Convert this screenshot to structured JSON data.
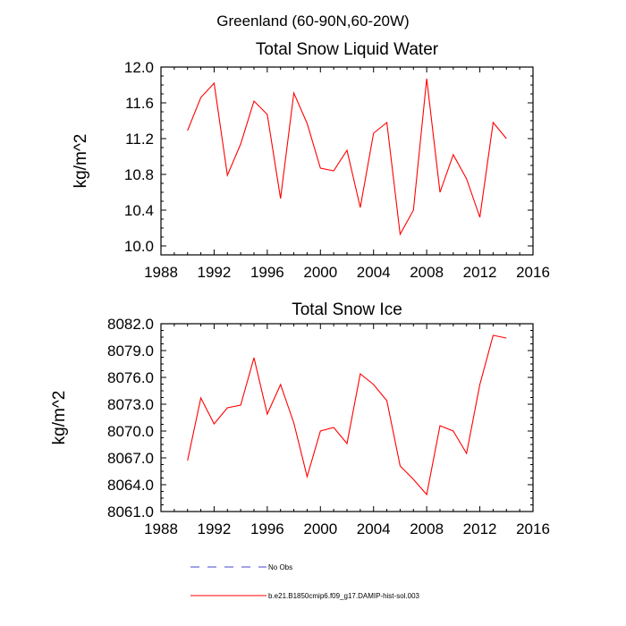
{
  "page_title": "Greenland (60-90N,60-20W)",
  "chart_data": [
    {
      "type": "line",
      "title": "Total Snow Liquid Water",
      "xlabel": "",
      "ylabel": "kg/m^2",
      "xlim": [
        1988,
        2016
      ],
      "ylim": [
        9.9,
        12.0
      ],
      "xticks": [
        "1988",
        "1992",
        "1996",
        "2000",
        "2004",
        "2008",
        "2012",
        "2016"
      ],
      "yticks": [
        "10.0",
        "10.4",
        "10.8",
        "11.2",
        "11.6",
        "12.0"
      ],
      "series": [
        {
          "name": "b.e21.B1850cmip6.f09_g17.DAMIP-hist-sol.003",
          "color": "#ff0000",
          "x": [
            1990,
            1991,
            1992,
            1993,
            1994,
            1995,
            1996,
            1997,
            1998,
            1999,
            2000,
            2001,
            2002,
            2003,
            2004,
            2005,
            2006,
            2007,
            2008,
            2009,
            2010,
            2011,
            2012,
            2013,
            2014
          ],
          "values": [
            11.29,
            11.66,
            11.82,
            10.79,
            11.14,
            11.62,
            11.47,
            10.53,
            11.71,
            11.37,
            10.87,
            10.84,
            11.07,
            10.43,
            11.26,
            11.38,
            10.13,
            10.4,
            11.87,
            10.6,
            11.02,
            10.75,
            10.32,
            11.38,
            11.2
          ]
        }
      ]
    },
    {
      "type": "line",
      "title": "Total Snow Ice",
      "xlabel": "",
      "ylabel": "kg/m^2",
      "xlim": [
        1988,
        2016
      ],
      "ylim": [
        8061.0,
        8082.0
      ],
      "xticks": [
        "1988",
        "1992",
        "1996",
        "2000",
        "2004",
        "2008",
        "2012",
        "2016"
      ],
      "yticks": [
        "8061.0",
        "8064.0",
        "8067.0",
        "8070.0",
        "8073.0",
        "8076.0",
        "8079.0",
        "8082.0"
      ],
      "series": [
        {
          "name": "b.e21.B1850cmip6.f09_g17.DAMIP-hist-sol.003",
          "color": "#ff0000",
          "x": [
            1990,
            1991,
            1992,
            1993,
            1994,
            1995,
            1996,
            1997,
            1998,
            1999,
            2000,
            2001,
            2002,
            2003,
            2004,
            2005,
            2006,
            2007,
            2008,
            2009,
            2010,
            2011,
            2012,
            2013,
            2014
          ],
          "values": [
            8066.7,
            8073.7,
            8070.8,
            8072.6,
            8072.9,
            8078.2,
            8071.9,
            8075.2,
            8070.9,
            8064.9,
            8070.0,
            8070.4,
            8068.6,
            8076.4,
            8075.2,
            8073.4,
            8066.1,
            8064.6,
            8062.9,
            8070.6,
            8070.0,
            8067.5,
            8075.2,
            8080.7,
            8080.4
          ]
        }
      ]
    }
  ],
  "legend": [
    {
      "label": "No Obs",
      "color": "#4444cc",
      "style": "dashed"
    },
    {
      "label": "b.e21.B1850cmip6.f09_g17.DAMIP-hist-sol.003",
      "color": "#ff0000",
      "style": "solid"
    }
  ]
}
